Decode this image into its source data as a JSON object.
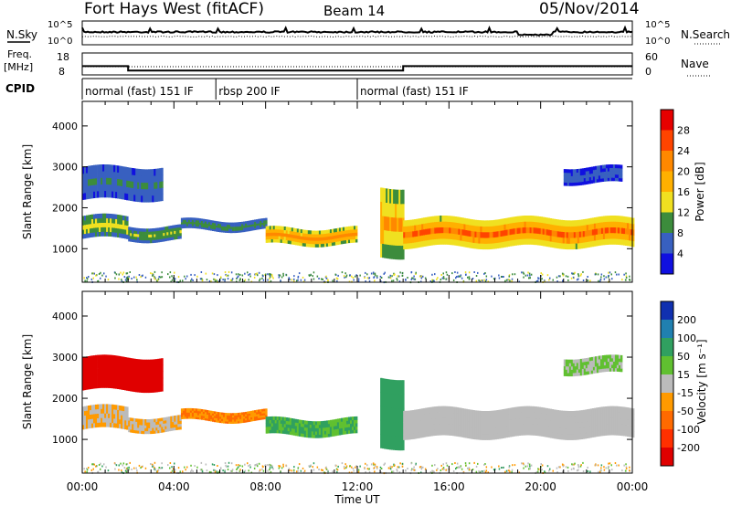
{
  "header": {
    "title": "Fort Hays West (fitACF)",
    "beam": "Beam 14",
    "date": "05/Nov/2014"
  },
  "noise_panel": {
    "left_label": "N.Sky",
    "right_label": "N.Search",
    "left_ticks": [
      "10^5",
      "10^0"
    ],
    "right_ticks": [
      "10^5",
      "10^0"
    ]
  },
  "freq_panel": {
    "left_label_line1": "Freq.",
    "left_label_line2": "[MHz]",
    "right_label": "Nave",
    "left_ticks": [
      "18",
      "8"
    ],
    "right_ticks": [
      "60",
      "0"
    ]
  },
  "cpid": {
    "label": "CPID",
    "segments": [
      {
        "start": 0.0,
        "end": 5.83,
        "text": "normal (fast) 151 IF"
      },
      {
        "start": 5.83,
        "end": 12.0,
        "text": "rbsp 200 IF"
      },
      {
        "start": 12.0,
        "end": 24.0,
        "text": "normal (fast) 151 IF"
      }
    ]
  },
  "power_panel": {
    "ylabel": "Slant Range [km]",
    "cbar_label": "Power [dB]",
    "cbar_ticks": [
      "28",
      "24",
      "20",
      "16",
      "12",
      "8",
      "4"
    ],
    "cbar_colors": [
      "#e60000",
      "#ff4400",
      "#ff8800",
      "#ffb000",
      "#f0e020",
      "#3c8c3c",
      "#3860c0",
      "#1010e0"
    ]
  },
  "velocity_panel": {
    "ylabel": "Slant Range [km]",
    "cbar_label": "Velocity [m s⁻¹]",
    "cbar_ticks": [
      "200",
      "100",
      "50",
      "15",
      "-15",
      "-50",
      "-100",
      "-200"
    ],
    "cbar_colors": [
      "#1030b0",
      "#2080b0",
      "#30a060",
      "#60c030",
      "#bbbbbb",
      "#ff9a00",
      "#ff6a00",
      "#ff3000",
      "#e00000"
    ]
  },
  "xaxis": {
    "label": "Time UT",
    "ticks": [
      "00:00",
      "04:00",
      "08:00",
      "12:00",
      "16:00",
      "20:00",
      "00:00"
    ]
  },
  "chart_data": {
    "type": "heatmap",
    "x_range_hours": [
      0,
      24
    ],
    "y_range_km": [
      180,
      4600
    ],
    "y_ticks_km": [
      1000,
      2000,
      3000,
      4000
    ],
    "echo_bands": [
      {
        "t": [
          0.0,
          2.0
        ],
        "range_km": [
          1250,
          1800
        ],
        "power_db": 14,
        "velocity": -15
      },
      {
        "t": [
          2.0,
          4.3
        ],
        "range_km": [
          1200,
          1550
        ],
        "power_db": 12,
        "velocity": -15
      },
      {
        "t": [
          4.3,
          8.0
        ],
        "range_km": [
          1450,
          1700
        ],
        "power_db": 10,
        "velocity": -50
      },
      {
        "t": [
          8.0,
          12.0
        ],
        "range_km": [
          1100,
          1500
        ],
        "power_db": 22,
        "velocity": 30
      },
      {
        "t": [
          13.0,
          14.0
        ],
        "range_km": [
          800,
          2500
        ],
        "power_db": 20,
        "velocity": 40
      },
      {
        "t": [
          14.0,
          24.0
        ],
        "range_km": [
          1050,
          1750
        ],
        "power_db": 24,
        "velocity": 0
      },
      {
        "t": [
          0.0,
          3.5
        ],
        "range_km": [
          2200,
          3000
        ],
        "power_db": 8,
        "velocity": -200
      },
      {
        "t": [
          21.0,
          23.5
        ],
        "range_km": [
          2600,
          3000
        ],
        "power_db": 6,
        "velocity": 15
      }
    ],
    "frequency_mhz": [
      {
        "t": [
          0.0,
          2.0
        ],
        "value": 12
      },
      {
        "t": [
          2.0,
          14.0
        ],
        "value": 10
      },
      {
        "t": [
          14.0,
          24.0
        ],
        "value": 12
      }
    ]
  }
}
